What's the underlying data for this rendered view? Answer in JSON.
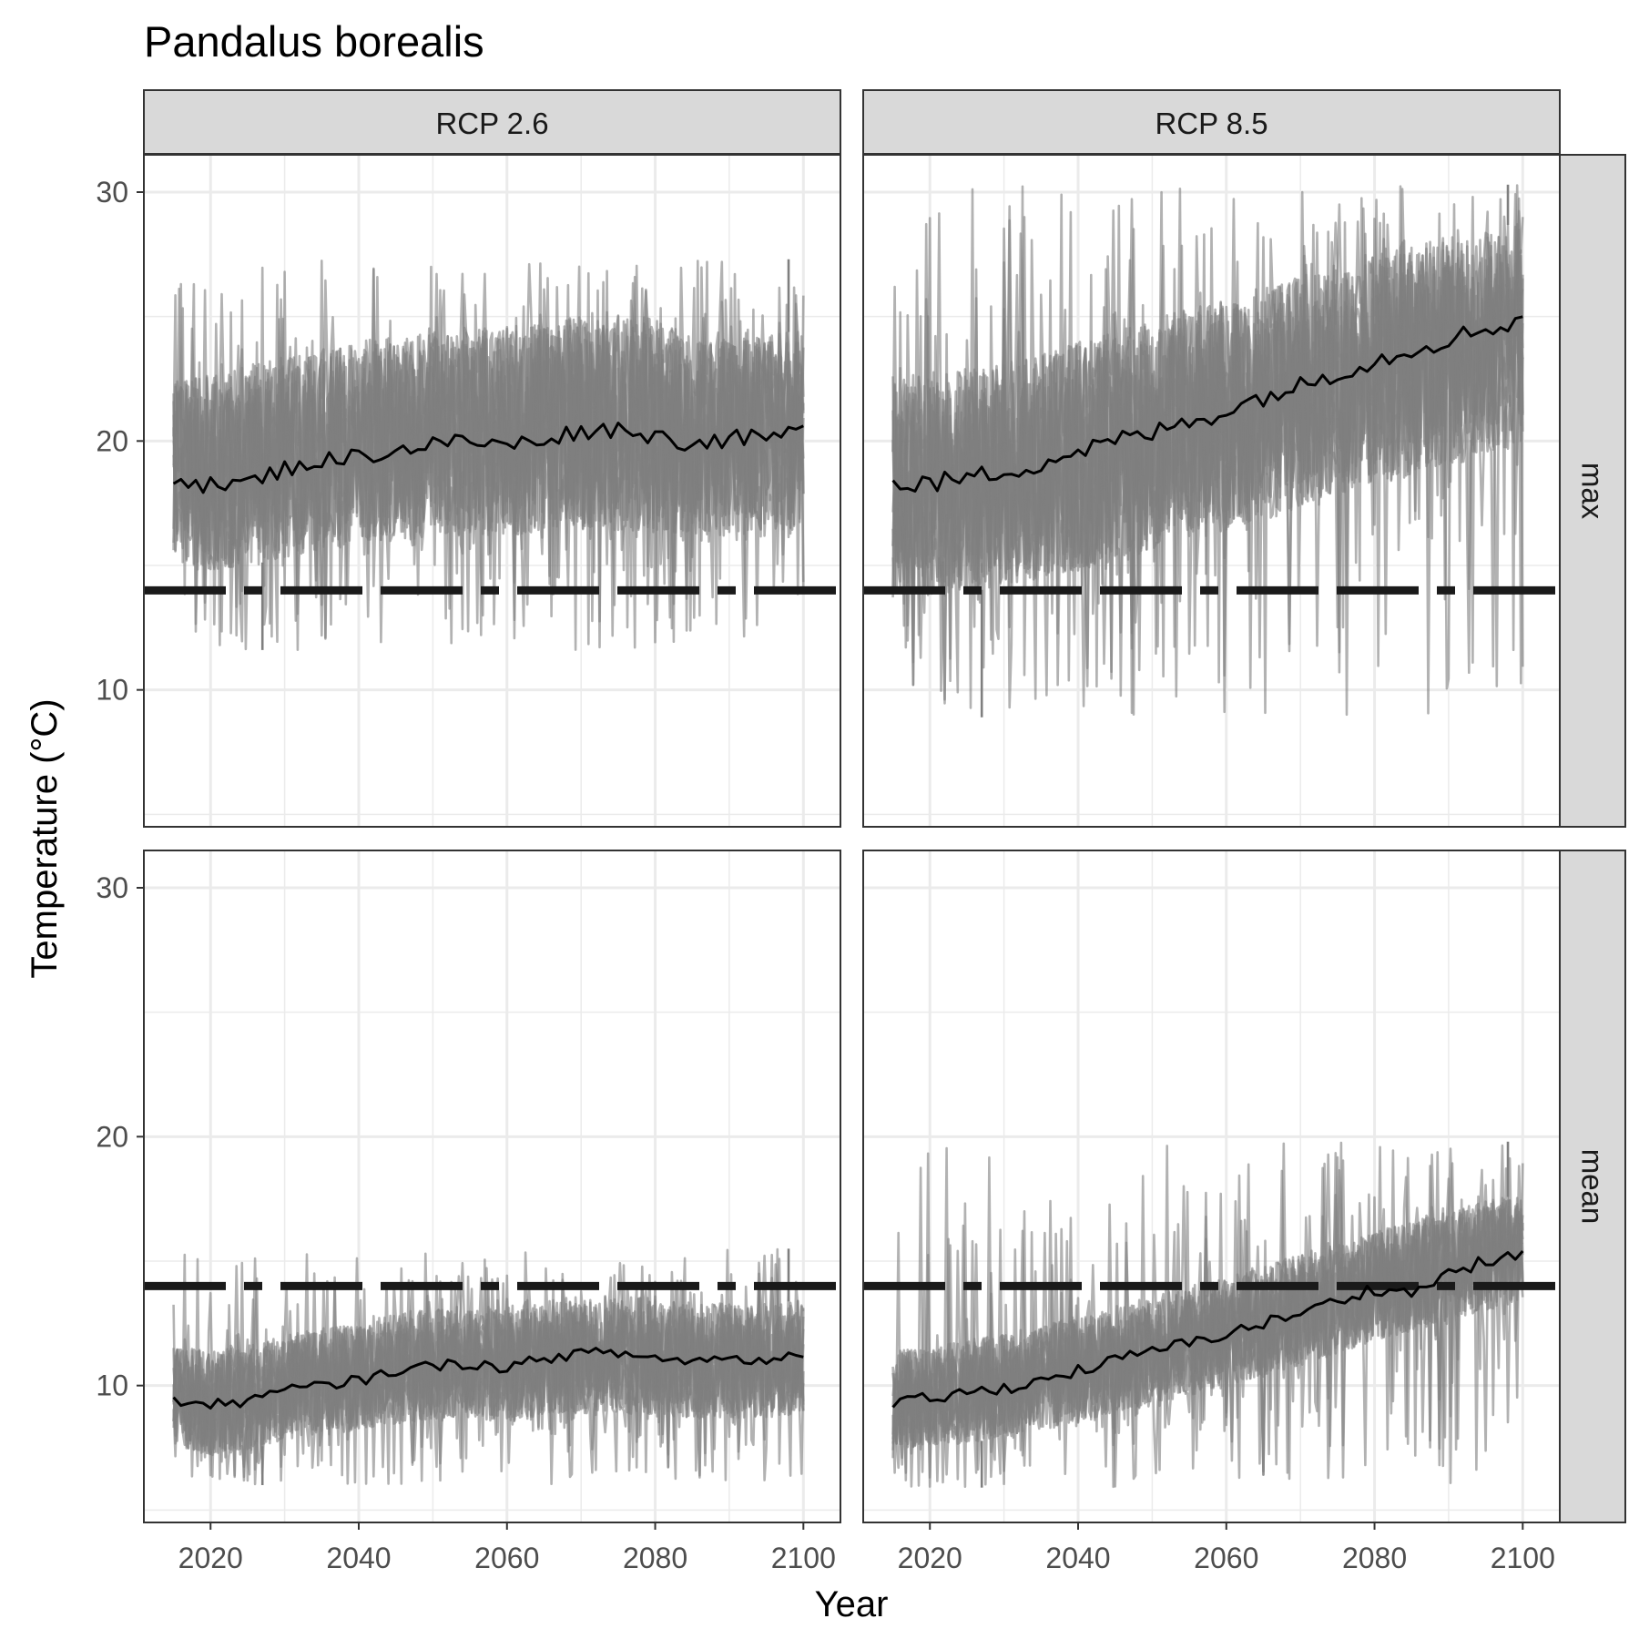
{
  "chart_data": {
    "type": "line",
    "title": "Pandalus borealis",
    "xlabel": "Year",
    "ylabel": "Temperature (°C)",
    "xlim": [
      2011,
      2105
    ],
    "ylim": [
      4.5,
      31.5
    ],
    "x_ticks": [
      2020,
      2040,
      2060,
      2080,
      2100
    ],
    "x_tick_labels": [
      "2020",
      "2040",
      "2060",
      "2080",
      "2100"
    ],
    "y_ticks": [
      10,
      20,
      30
    ],
    "y_tick_labels": [
      "10",
      "20",
      "30"
    ],
    "y_minor_ticks": [
      5,
      15,
      25
    ],
    "grid": true,
    "theme": "bw",
    "threshold": 14,
    "threshold_style": "dashed",
    "colors": {
      "ensemble": "#7f7f7f",
      "mean": "#000000",
      "threshold": "#1a1a1a",
      "strip": "#d9d9d9",
      "grid": "#ebebeb"
    },
    "columns": [
      "RCP 2.6",
      "RCP 8.5"
    ],
    "rows": [
      "max",
      "mean"
    ],
    "years": [
      2015,
      2100
    ],
    "panels": [
      {
        "column": "RCP 2.6",
        "row": "max",
        "mean_series": {
          "name": "mean",
          "knots_x": [
            2015,
            2020,
            2025,
            2030,
            2035,
            2040,
            2045,
            2050,
            2055,
            2060,
            2065,
            2070,
            2075,
            2080,
            2085,
            2090,
            2095,
            2100
          ],
          "knots_y": [
            18.6,
            18.2,
            18.3,
            18.9,
            19.2,
            19.4,
            19.6,
            19.9,
            20.0,
            19.8,
            20.1,
            20.4,
            20.5,
            20.2,
            19.9,
            20.1,
            20.1,
            20.4
          ],
          "noise": 0.35
        },
        "ensemble": {
          "lower_knots_y": [
            15.2,
            14.8,
            15.0,
            15.3,
            15.6,
            15.8,
            16.0,
            16.1,
            16.2,
            16.2,
            16.3,
            16.4,
            16.4,
            16.3,
            16.1,
            16.2,
            16.3,
            16.5
          ],
          "upper_knots_y": [
            22.8,
            22.6,
            23.0,
            23.4,
            23.7,
            23.9,
            24.1,
            24.4,
            24.5,
            24.6,
            24.8,
            25.0,
            25.1,
            24.9,
            24.2,
            24.1,
            24.2,
            24.5
          ],
          "spike_min": 11.6,
          "spike_max": 27.3
        }
      },
      {
        "column": "RCP 8.5",
        "row": "max",
        "mean_series": {
          "name": "mean",
          "knots_x": [
            2015,
            2020,
            2025,
            2030,
            2035,
            2040,
            2045,
            2050,
            2055,
            2060,
            2065,
            2070,
            2075,
            2080,
            2085,
            2090,
            2095,
            2100
          ],
          "knots_y": [
            18.2,
            18.3,
            18.5,
            18.8,
            19.1,
            19.6,
            20.0,
            20.3,
            20.8,
            21.2,
            21.8,
            22.2,
            22.8,
            23.2,
            23.7,
            24.1,
            24.5,
            24.9
          ],
          "noise": 0.4
        },
        "ensemble": {
          "lower_knots_y": [
            14.0,
            13.8,
            13.9,
            14.2,
            14.5,
            14.8,
            15.2,
            15.6,
            16.0,
            16.4,
            16.9,
            17.3,
            17.8,
            18.2,
            18.6,
            19.0,
            19.5,
            19.8
          ],
          "upper_knots_y": [
            22.6,
            22.7,
            22.9,
            23.2,
            23.5,
            24.0,
            24.4,
            24.9,
            25.3,
            25.7,
            26.2,
            26.6,
            27.1,
            27.5,
            27.9,
            28.2,
            28.5,
            28.8
          ],
          "spike_min": 8.9,
          "spike_max": 30.3
        }
      },
      {
        "column": "RCP 2.6",
        "row": "mean",
        "mean_series": {
          "name": "mean",
          "knots_x": [
            2015,
            2020,
            2025,
            2030,
            2035,
            2040,
            2045,
            2050,
            2055,
            2060,
            2065,
            2070,
            2075,
            2080,
            2085,
            2090,
            2095,
            2100
          ],
          "knots_y": [
            9.4,
            9.2,
            9.4,
            9.8,
            10.0,
            10.2,
            10.6,
            10.8,
            10.9,
            10.7,
            11.1,
            11.3,
            11.3,
            11.1,
            11.0,
            11.1,
            11.0,
            11.3
          ],
          "noise": 0.22
        },
        "ensemble": {
          "lower_knots_y": [
            7.6,
            7.2,
            7.4,
            7.8,
            8.0,
            8.2,
            8.5,
            8.6,
            8.7,
            8.5,
            8.8,
            8.9,
            8.9,
            8.8,
            8.7,
            8.7,
            8.7,
            8.9
          ],
          "upper_knots_y": [
            11.6,
            11.4,
            11.6,
            12.0,
            12.3,
            12.5,
            12.9,
            13.1,
            13.2,
            13.0,
            13.4,
            13.6,
            13.6,
            13.5,
            13.3,
            13.3,
            13.2,
            13.5
          ],
          "spike_min": 6.0,
          "spike_max": 15.5
        }
      },
      {
        "column": "RCP 8.5",
        "row": "mean",
        "mean_series": {
          "name": "mean",
          "knots_x": [
            2015,
            2020,
            2025,
            2030,
            2035,
            2040,
            2045,
            2050,
            2055,
            2060,
            2065,
            2070,
            2075,
            2080,
            2085,
            2090,
            2095,
            2100
          ],
          "knots_y": [
            9.2,
            9.5,
            9.7,
            9.9,
            10.2,
            10.6,
            11.0,
            11.4,
            11.7,
            12.1,
            12.5,
            12.9,
            13.4,
            13.9,
            13.7,
            14.5,
            15.0,
            15.2
          ],
          "noise": 0.25
        },
        "ensemble": {
          "lower_knots_y": [
            7.4,
            7.6,
            7.7,
            7.9,
            8.2,
            8.5,
            8.9,
            9.2,
            9.6,
            10.0,
            10.4,
            10.8,
            11.3,
            11.8,
            12.2,
            12.6,
            13.0,
            13.3
          ],
          "upper_knots_y": [
            11.4,
            11.6,
            11.8,
            12.1,
            12.4,
            12.8,
            13.2,
            13.6,
            14.0,
            14.4,
            14.8,
            15.3,
            15.7,
            16.2,
            16.6,
            17.0,
            17.4,
            17.7
          ],
          "spike_min": 5.9,
          "spike_max": 19.8
        }
      }
    ]
  }
}
